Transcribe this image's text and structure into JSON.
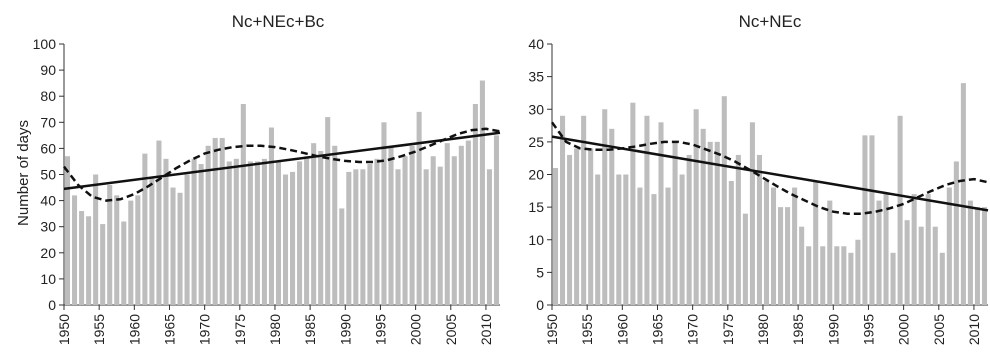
{
  "chart_data": [
    {
      "type": "bar",
      "title": "Nc+NEc+Bc",
      "xlabel": "",
      "ylabel": "Number of days",
      "ylim": [
        0,
        100
      ],
      "yticks": [
        0,
        10,
        20,
        30,
        40,
        50,
        60,
        70,
        80,
        90,
        100
      ],
      "xticks": [
        1950,
        1955,
        1960,
        1965,
        1970,
        1975,
        1980,
        1985,
        1990,
        1995,
        2000,
        2005,
        2010
      ],
      "x": [
        1951,
        1952,
        1953,
        1954,
        1955,
        1956,
        1957,
        1958,
        1959,
        1960,
        1961,
        1962,
        1963,
        1964,
        1965,
        1966,
        1967,
        1968,
        1969,
        1970,
        1971,
        1972,
        1973,
        1974,
        1975,
        1976,
        1977,
        1978,
        1979,
        1980,
        1981,
        1982,
        1983,
        1984,
        1985,
        1986,
        1987,
        1988,
        1989,
        1990,
        1991,
        1992,
        1993,
        1994,
        1995,
        1996,
        1997,
        1998,
        1999,
        2000,
        2001,
        2002,
        2003,
        2004,
        2005,
        2006,
        2007,
        2008,
        2009,
        2010,
        2011,
        2012
      ],
      "values": [
        57,
        42,
        36,
        34,
        50,
        31,
        46,
        42,
        32,
        40,
        42,
        58,
        49,
        63,
        56,
        45,
        43,
        50,
        56,
        54,
        61,
        64,
        64,
        55,
        56,
        77,
        55,
        55,
        56,
        68,
        55,
        50,
        51,
        55,
        57,
        62,
        59,
        72,
        61,
        37,
        51,
        52,
        52,
        54,
        56,
        70,
        61,
        52,
        57,
        61,
        74,
        52,
        57,
        53,
        62,
        57,
        61,
        63,
        77,
        86,
        52,
        65
      ],
      "linear_trend": {
        "x": [
          1950,
          2012
        ],
        "y": [
          44.5,
          66
        ]
      },
      "poly_trend": {
        "x": [
          1950,
          1952,
          1954,
          1956,
          1958,
          1960,
          1962,
          1964,
          1966,
          1968,
          1970,
          1972,
          1974,
          1976,
          1978,
          1980,
          1982,
          1984,
          1986,
          1988,
          1990,
          1992,
          1994,
          1996,
          1998,
          2000,
          2002,
          2004,
          2006,
          2008,
          2010,
          2012
        ],
        "y": [
          53,
          46,
          41.5,
          40,
          40.5,
          42.5,
          45.5,
          49,
          52.5,
          55.5,
          58,
          59.5,
          60.5,
          61,
          61,
          60.5,
          59.5,
          58.3,
          57,
          56,
          55.2,
          54.8,
          54.8,
          55.5,
          57,
          58.8,
          61,
          63.3,
          65.5,
          67,
          67.5,
          66.5
        ]
      }
    },
    {
      "type": "bar",
      "title": "Nc+NEc",
      "xlabel": "",
      "ylabel": "",
      "ylim": [
        0,
        40
      ],
      "yticks": [
        0,
        5,
        10,
        15,
        20,
        25,
        30,
        35,
        40
      ],
      "xticks": [
        1950,
        1955,
        1960,
        1965,
        1970,
        1975,
        1980,
        1985,
        1990,
        1995,
        2000,
        2005,
        2010
      ],
      "x": [
        1951,
        1952,
        1953,
        1954,
        1955,
        1956,
        1957,
        1958,
        1959,
        1960,
        1961,
        1962,
        1963,
        1964,
        1965,
        1966,
        1967,
        1968,
        1969,
        1970,
        1971,
        1972,
        1973,
        1974,
        1975,
        1976,
        1977,
        1978,
        1979,
        1980,
        1981,
        1982,
        1983,
        1984,
        1985,
        1986,
        1987,
        1988,
        1989,
        1990,
        1991,
        1992,
        1993,
        1994,
        1995,
        1996,
        1997,
        1998,
        1999,
        2000,
        2001,
        2002,
        2003,
        2004,
        2005,
        2006,
        2007,
        2008,
        2009,
        2010,
        2011,
        2012
      ],
      "values": [
        21,
        29,
        23,
        24,
        29,
        24,
        20,
        30,
        27,
        20,
        20,
        31,
        18,
        29,
        17,
        28,
        18,
        25,
        20,
        23,
        30,
        27,
        25,
        25,
        32,
        19,
        23,
        14,
        28,
        23,
        19,
        18,
        15,
        15,
        18,
        12,
        9,
        19,
        9,
        16,
        9,
        9,
        8,
        10,
        26,
        26,
        16,
        17,
        8,
        29,
        13,
        17,
        12,
        17,
        12,
        8,
        18,
        22,
        34,
        16,
        15,
        15
      ],
      "linear_trend": {
        "x": [
          1950,
          2012
        ],
        "y": [
          25.8,
          14.5
        ]
      },
      "poly_trend": {
        "x": [
          1950,
          1952,
          1954,
          1956,
          1958,
          1960,
          1962,
          1964,
          1966,
          1968,
          1970,
          1972,
          1974,
          1976,
          1978,
          1980,
          1982,
          1984,
          1986,
          1988,
          1990,
          1992,
          1994,
          1996,
          1998,
          2000,
          2002,
          2004,
          2006,
          2008,
          2010,
          2012
        ],
        "y": [
          28,
          25,
          24,
          23.8,
          23.8,
          24,
          24.3,
          24.7,
          25,
          25,
          24.6,
          23.8,
          23,
          22,
          20.8,
          19.5,
          18.2,
          17,
          16,
          15,
          14.3,
          14,
          14,
          14.3,
          14.8,
          15.5,
          16.5,
          17.5,
          18.4,
          19,
          19.3,
          18.8
        ]
      }
    }
  ]
}
